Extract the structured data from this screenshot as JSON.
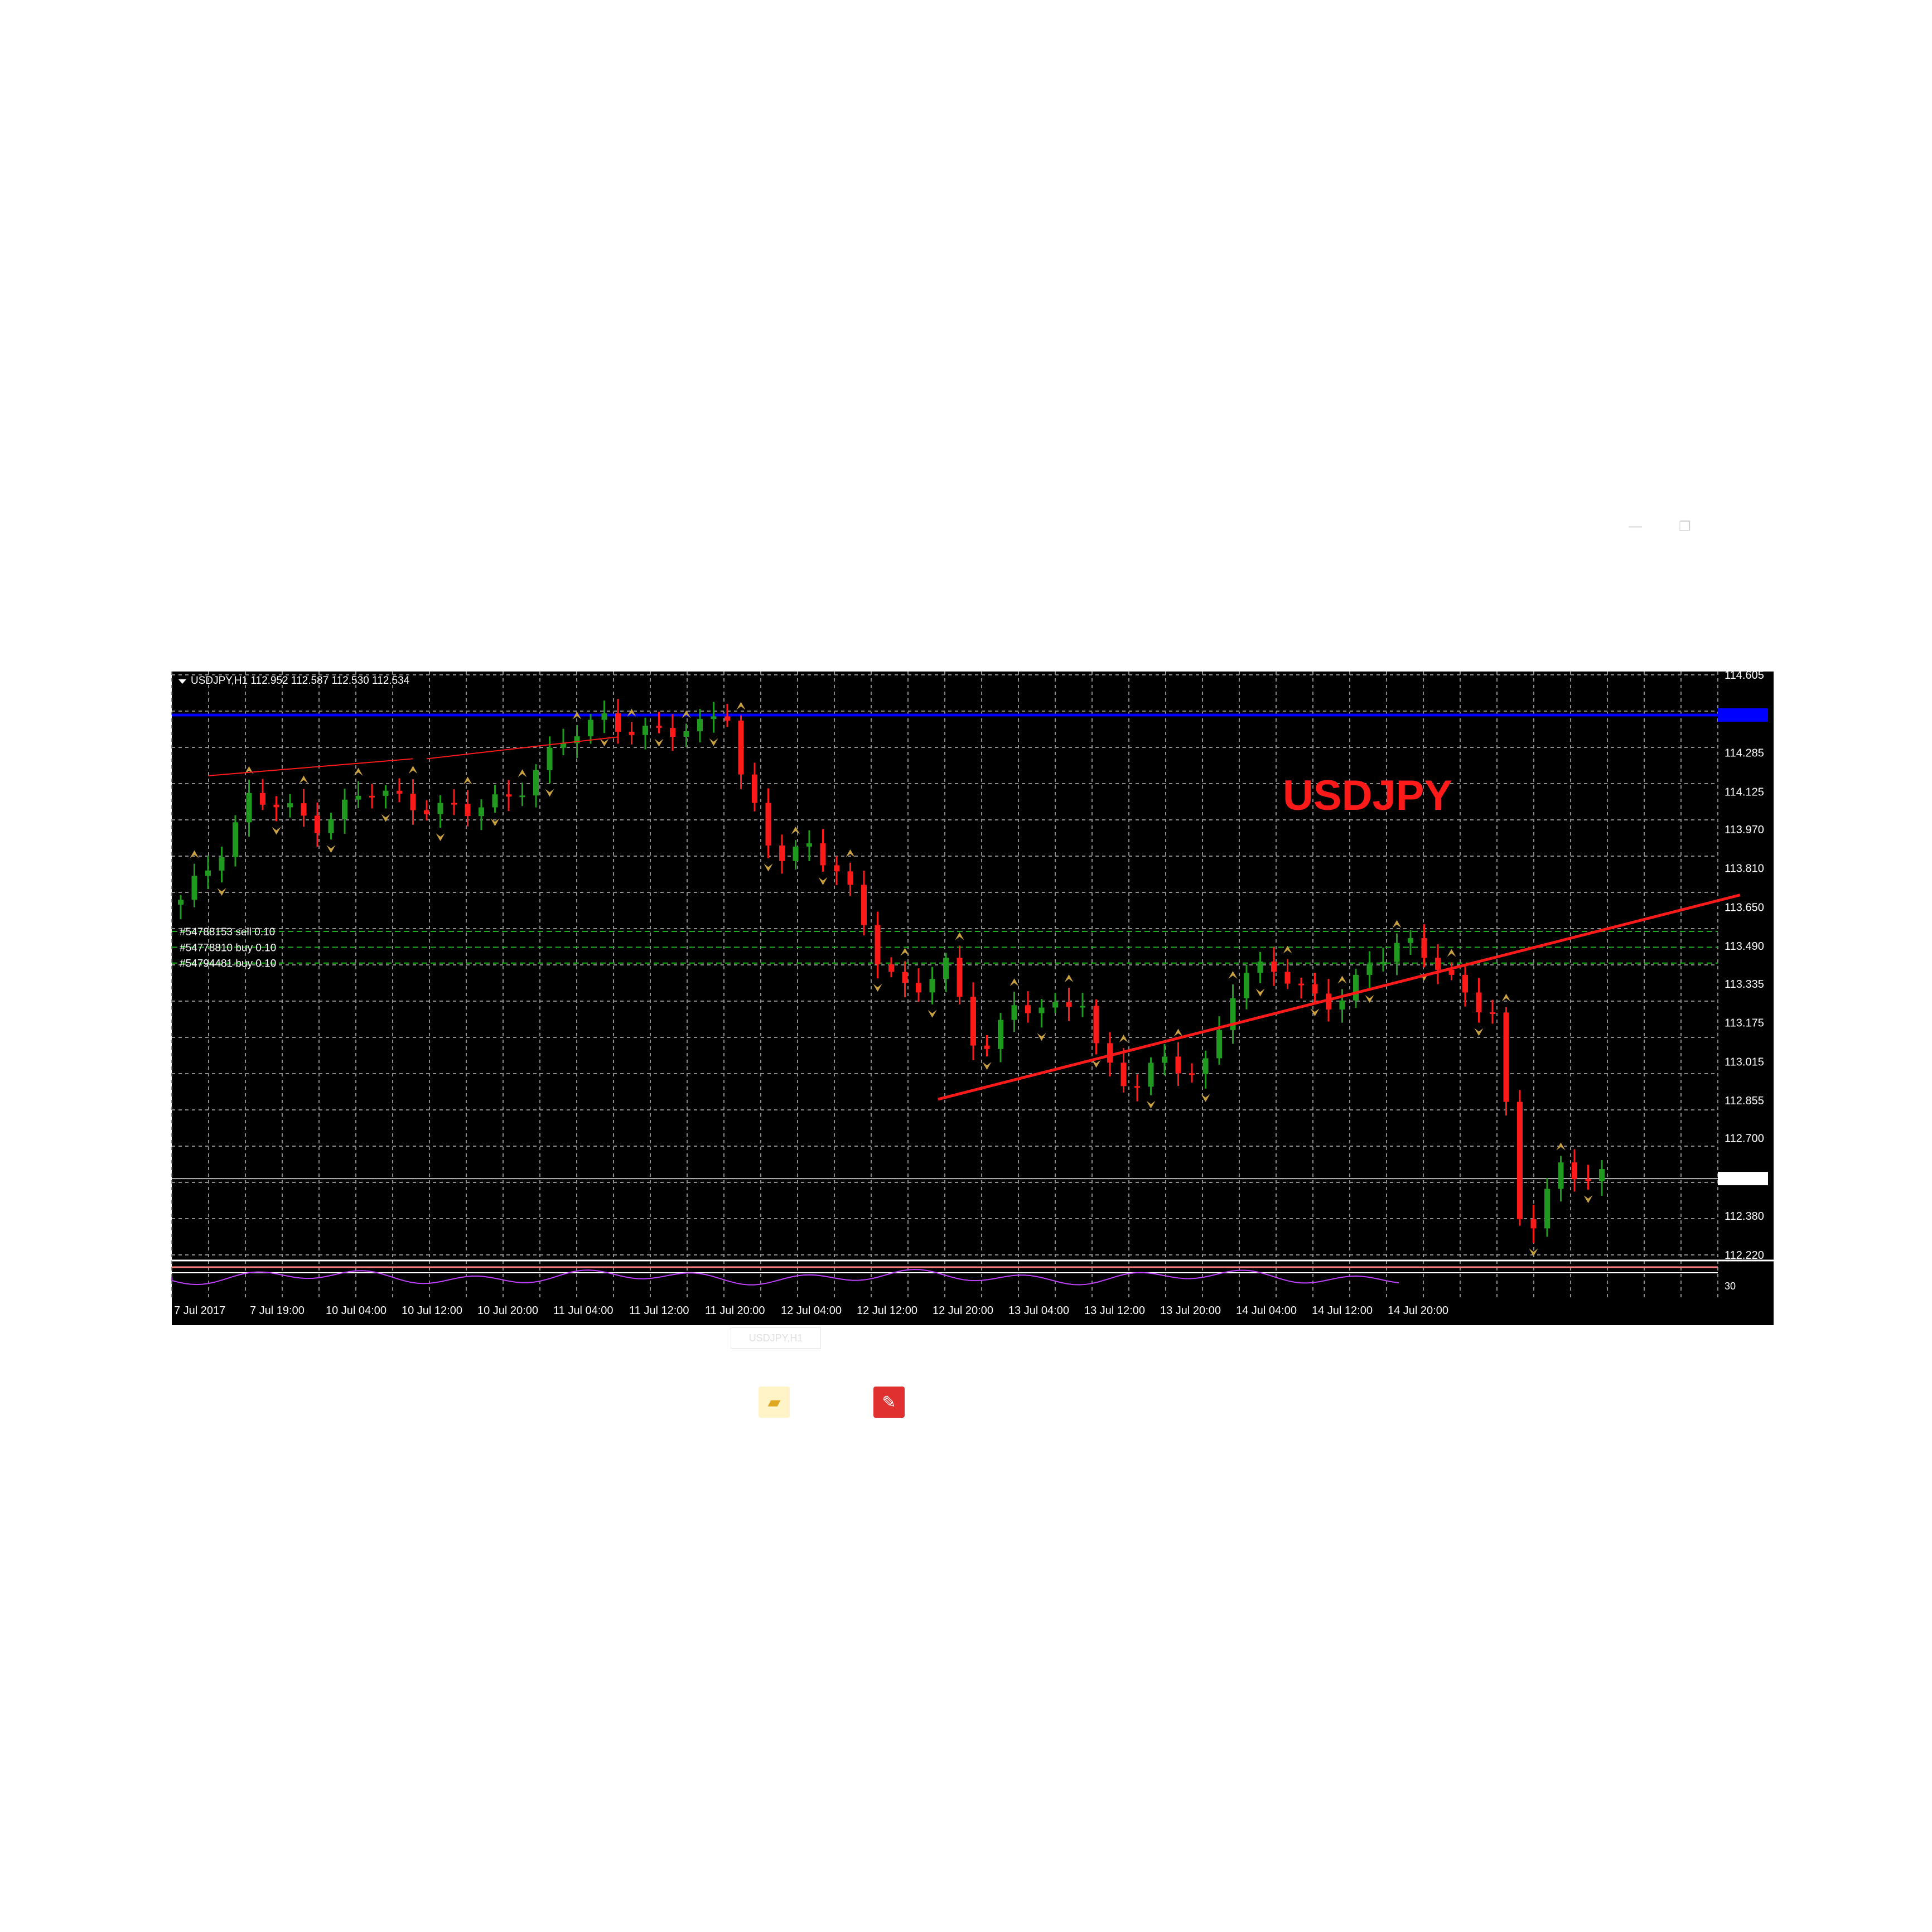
{
  "window": {
    "title": "",
    "minimize_glyph": "—",
    "restore_glyph": "❐"
  },
  "chart": {
    "header": "USDJPY,H1  112.952 112.587 112.530 112.534",
    "watermark": "USDJPY",
    "price_axis": [
      "114.605",
      "114.285",
      "114.125",
      "113.970",
      "113.810",
      "113.650",
      "113.490",
      "113.335",
      "113.175",
      "113.015",
      "112.855",
      "112.700",
      "112.380",
      "112.220"
    ],
    "time_axis": [
      "7 Jul 2017",
      "7 Jul 19:00",
      "10 Jul 04:00",
      "10 Jul 12:00",
      "10 Jul 20:00",
      "11 Jul 04:00",
      "11 Jul 12:00",
      "11 Jul 20:00",
      "12 Jul 04:00",
      "12 Jul 12:00",
      "12 Jul 20:00",
      "13 Jul 04:00",
      "13 Jul 12:00",
      "13 Jul 20:00",
      "14 Jul 04:00",
      "14 Jul 12:00",
      "14 Jul 20:00"
    ],
    "orders": [
      "#54788153 sell 0.10",
      "#54778810 buy 0.10",
      "#54794481 buy 0.10"
    ],
    "indicator_level": "30",
    "colors": {
      "background": "#000000",
      "grid": "#8c8c8c",
      "bull": "#1f9a1f",
      "bear": "#ff1a1a",
      "fractal": "#c8a040",
      "level_line": "#0000ff",
      "trend_line": "#ff1a1a",
      "order_line": "#22aa22",
      "watermark": "#ff1a1a"
    }
  },
  "status": {
    "tab_label": "USDJPY,H1"
  },
  "taskbar": {
    "icons": [
      "folder-icon",
      "app-icon"
    ]
  }
}
